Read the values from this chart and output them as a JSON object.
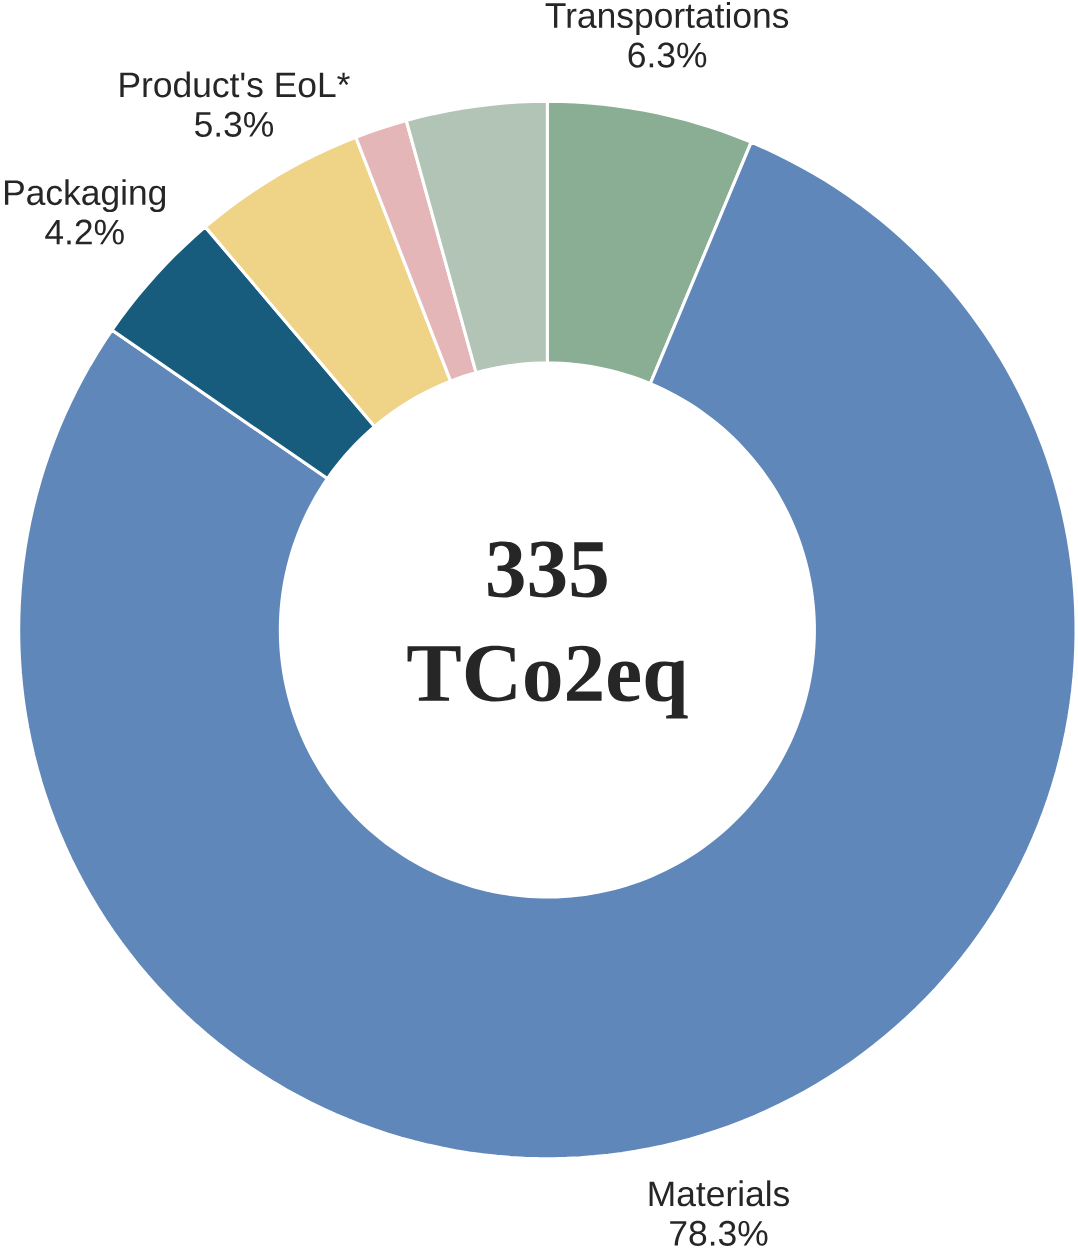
{
  "chart_data": {
    "type": "donut",
    "categories": [
      "Transportations",
      "Materials",
      "Packaging",
      "Product's EoL*",
      null,
      null
    ],
    "values": [
      6.3,
      78.3,
      4.2,
      5.3,
      1.6,
      4.3
    ],
    "colors": [
      "#8aae93",
      "#6087b9",
      "#175c7c",
      "#efd386",
      "#e5b6b8",
      "#b2c4b5"
    ],
    "value_labels": [
      "6.3%",
      "78.3%",
      "4.2%",
      "5.3%",
      null,
      null
    ],
    "annotations": [
      "335",
      "TCo2eq"
    ]
  }
}
